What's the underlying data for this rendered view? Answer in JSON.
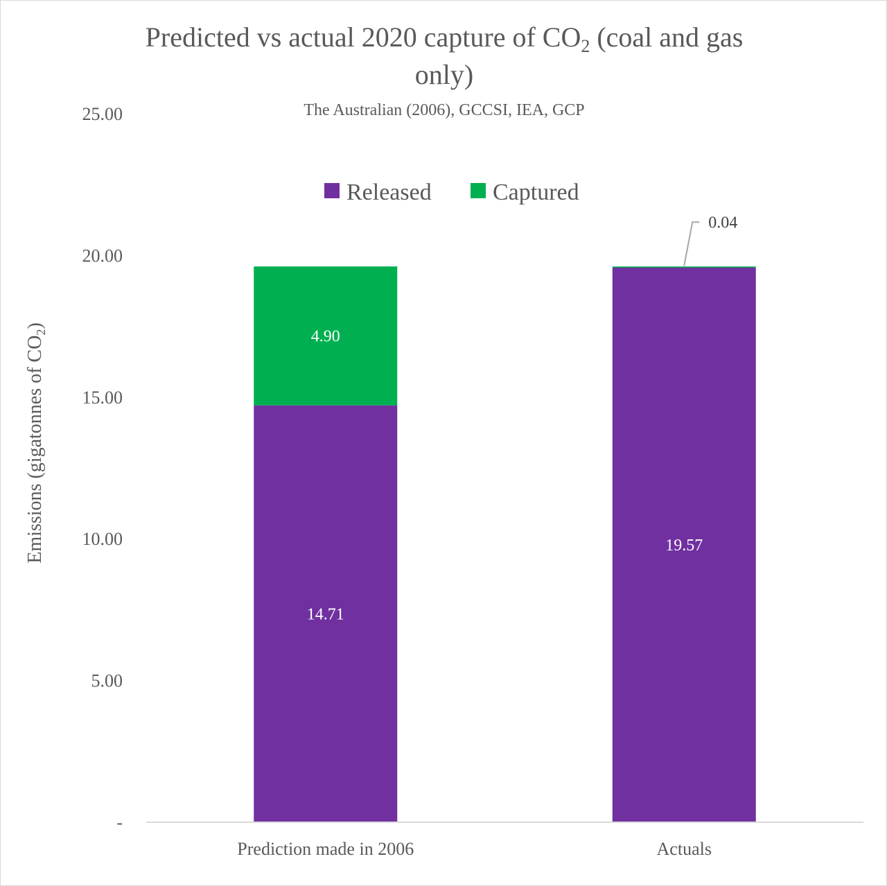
{
  "chart_data": {
    "type": "bar",
    "stacked": true,
    "title": "Predicted vs actual 2020 capture of CO",
    "title_subscript": "2",
    "title_suffix": " (coal and gas",
    "title_line2": "only)",
    "subtitle": "The Australian (2006), GCCSI, IEA, GCP",
    "ylabel": "Emissions (gigatonnes of CO",
    "ylabel_subscript": "2",
    "ylabel_suffix": ")",
    "xlabel": "",
    "ylim": [
      0,
      25
    ],
    "y_ticks": [
      {
        "value": 0,
        "label": "-"
      },
      {
        "value": 5,
        "label": "5.00"
      },
      {
        "value": 10,
        "label": "10.00"
      },
      {
        "value": 15,
        "label": "15.00"
      },
      {
        "value": 20,
        "label": "20.00"
      },
      {
        "value": 25,
        "label": "25.00"
      }
    ],
    "categories": [
      "Prediction made in 2006",
      "Actuals"
    ],
    "series": [
      {
        "name": "Released",
        "color": "#7030a0",
        "label_color": "#ffffff",
        "values": [
          14.71,
          19.57
        ],
        "labels": [
          "14.71",
          "19.57"
        ]
      },
      {
        "name": "Captured",
        "color": "#00b050",
        "label_color": "#ffffff",
        "values": [
          4.9,
          0.04
        ],
        "labels": [
          "4.90",
          "0.04"
        ]
      }
    ],
    "legend_position": "top",
    "grid": false
  }
}
